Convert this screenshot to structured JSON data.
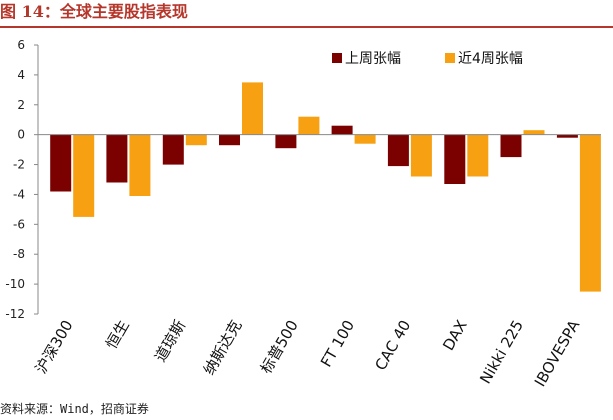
{
  "header": {
    "title": "图 14：全球主要股指表现"
  },
  "footer": {
    "source": "资料来源：Wind，招商证券"
  },
  "colors": {
    "week": "#7b0000",
    "four_week": "#f7a011",
    "title": "#b5362a"
  },
  "chart_data": {
    "type": "bar",
    "title": "",
    "xlabel": "",
    "ylabel": "",
    "ylim": [
      -12,
      6
    ],
    "yticks": [
      6,
      4,
      2,
      0,
      -2,
      -4,
      -6,
      -8,
      -10,
      -12
    ],
    "grid": false,
    "legend_position": "top-right",
    "categories": [
      "沪深300",
      "恒生",
      "道琼斯",
      "纳斯达克",
      "标普500",
      "FT 100",
      "CAC 40",
      "DAX",
      "Nikki 225",
      "IBOVESPA"
    ],
    "series": [
      {
        "name": "上周张幅",
        "color": "#7b0000",
        "values": [
          -3.8,
          -3.2,
          -2.0,
          -0.7,
          -0.9,
          0.6,
          -2.1,
          -3.3,
          -1.5,
          -0.2
        ]
      },
      {
        "name": "近4周张幅",
        "color": "#f7a011",
        "values": [
          -5.5,
          -4.1,
          -0.7,
          3.5,
          1.2,
          -0.6,
          -2.8,
          -2.8,
          0.3,
          -10.5
        ]
      }
    ]
  }
}
